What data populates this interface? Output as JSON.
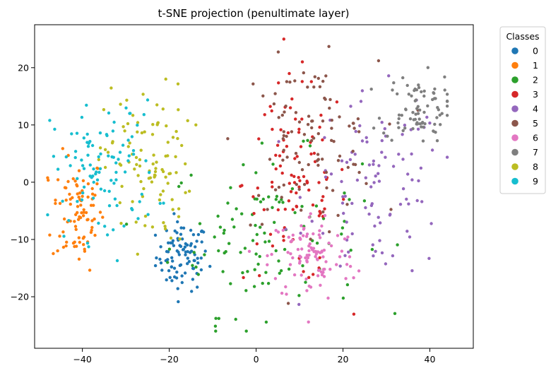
{
  "chart_data": {
    "type": "scatter",
    "title": "t-SNE projection (penultimate layer)",
    "xlabel": "",
    "ylabel": "",
    "xlim": [
      -51,
      50
    ],
    "ylim": [
      -29,
      27.5
    ],
    "xticks": [
      -40,
      -20,
      0,
      20,
      40
    ],
    "yticks": [
      -20,
      -10,
      0,
      10,
      20
    ],
    "xtick_labels": [
      "−40",
      "−20",
      "0",
      "20",
      "40"
    ],
    "ytick_labels": [
      "−20",
      "−10",
      "0",
      "10",
      "20"
    ],
    "grid": false,
    "legend": {
      "title": "Classes",
      "placement": "outside-right"
    },
    "series": [
      {
        "name": "0",
        "color": "#1f77b4",
        "cx": -17,
        "cy": -13,
        "sx": 3,
        "sy": 3,
        "n": 90
      },
      {
        "name": "1",
        "color": "#ff7f0e",
        "cx": -41,
        "cy": -5,
        "sx": 3,
        "sy": 5,
        "n": 90
      },
      {
        "name": "2",
        "color": "#2ca02c",
        "cx": 2,
        "cy": -9,
        "sx": 11,
        "sy": 7,
        "n": 110
      },
      {
        "name": "3",
        "color": "#d62728",
        "cx": 9,
        "cy": 0,
        "sx": 6,
        "sy": 9,
        "n": 100
      },
      {
        "name": "4",
        "color": "#9467bd",
        "cx": 28,
        "cy": -1,
        "sx": 8,
        "sy": 8,
        "n": 100
      },
      {
        "name": "5",
        "color": "#8c564b",
        "cx": 12,
        "cy": 7,
        "sx": 8,
        "sy": 7,
        "n": 100
      },
      {
        "name": "6",
        "color": "#e377c2",
        "cx": 13,
        "cy": -13,
        "sx": 5,
        "sy": 4,
        "n": 100
      },
      {
        "name": "7",
        "color": "#7f7f7f",
        "cx": 37,
        "cy": 13,
        "sx": 4,
        "sy": 3,
        "n": 80
      },
      {
        "name": "8",
        "color": "#bcbd22",
        "cx": -25,
        "cy": 3,
        "sx": 5,
        "sy": 7,
        "n": 100
      },
      {
        "name": "9",
        "color": "#17becf",
        "cx": -35,
        "cy": 2,
        "sx": 6,
        "sy": 6,
        "n": 100
      }
    ]
  }
}
